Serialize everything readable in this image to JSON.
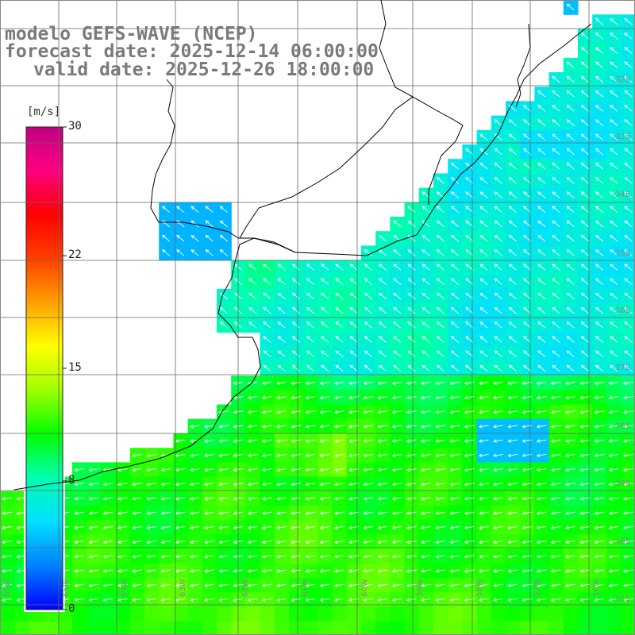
{
  "title": {
    "model": "modelo GEFS-WAVE (NCEP)",
    "forecast": "forecast date: 2025-12-14 06:00:00",
    "valid": "valid date: 2025-12-26 18:00:00"
  },
  "colorbar": {
    "units": "[m/s]",
    "min": 0,
    "max": 30,
    "ticks": [
      {
        "value": 30,
        "label": "30"
      },
      {
        "value": 22,
        "label": "22"
      },
      {
        "value": 15,
        "label": "15"
      },
      {
        "value": 8,
        "label": "8"
      },
      {
        "value": 0,
        "label": "0"
      }
    ],
    "colors": [
      "#0000ff",
      "#0080ff",
      "#00e0ff",
      "#00ffb0",
      "#00ff00",
      "#a0ff00",
      "#ffff00",
      "#ffa000",
      "#ff4000",
      "#ff0000",
      "#ff0080",
      "#c00080"
    ]
  },
  "map": {
    "lat_labels": [
      "32S",
      "33S",
      "34S",
      "35S",
      "36S",
      "37S",
      "38S",
      "39S",
      "40S",
      "41S"
    ],
    "lon_labels": [
      "66W",
      "65W",
      "64W",
      "63W",
      "62W",
      "61W",
      "60W",
      "59W",
      "58W",
      "57W",
      "56W"
    ]
  }
}
